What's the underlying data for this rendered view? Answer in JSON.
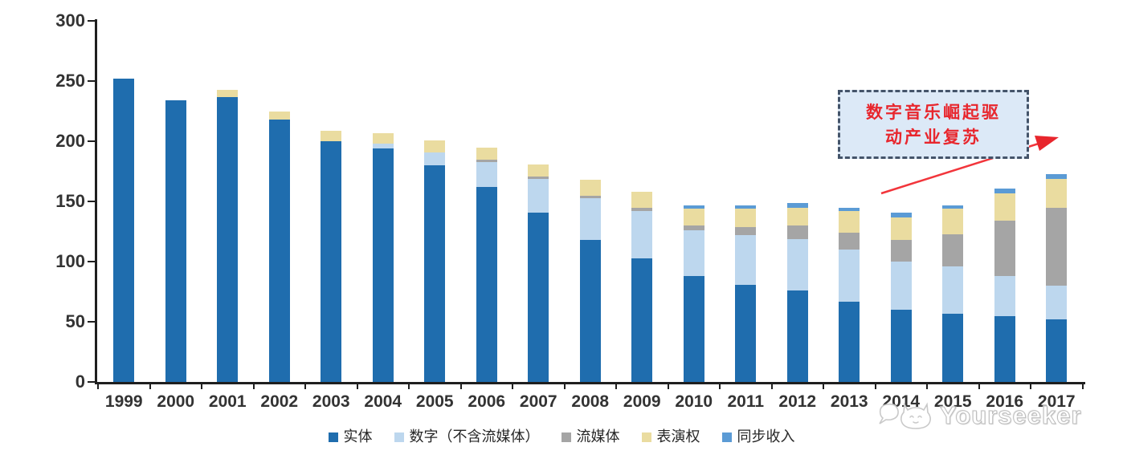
{
  "chart_data": {
    "type": "bar",
    "stacked": true,
    "title": "",
    "xlabel": "",
    "ylabel": "",
    "ylim": [
      0,
      300
    ],
    "yticks": [
      0,
      50,
      100,
      150,
      200,
      250,
      300
    ],
    "grid": false,
    "legend_position": "bottom",
    "axis_color": "#1f1f1f",
    "categories": [
      "1999",
      "2000",
      "2001",
      "2002",
      "2003",
      "2004",
      "2005",
      "2006",
      "2007",
      "2008",
      "2009",
      "2010",
      "2011",
      "2012",
      "2013",
      "2014",
      "2015",
      "2016",
      "2017"
    ],
    "series": [
      {
        "name": "实体",
        "color": "#1f6dae",
        "values": [
          252,
          234,
          237,
          218,
          200,
          194,
          180,
          162,
          141,
          118,
          103,
          88,
          81,
          76,
          67,
          60,
          57,
          55,
          52
        ]
      },
      {
        "name": "数字（不含流媒体）",
        "color": "#bdd7ee",
        "values": [
          0,
          0,
          0,
          0,
          0,
          4,
          11,
          21,
          28,
          35,
          39,
          38,
          41,
          43,
          43,
          40,
          39,
          33,
          28
        ]
      },
      {
        "name": "流媒体",
        "color": "#a5a5a5",
        "values": [
          0,
          0,
          0,
          0,
          0,
          0,
          0,
          2,
          2,
          2,
          3,
          4,
          7,
          11,
          14,
          18,
          27,
          46,
          65
        ]
      },
      {
        "name": "表演权",
        "color": "#eadca0",
        "values": [
          0,
          0,
          6,
          7,
          9,
          9,
          10,
          10,
          10,
          13,
          13,
          14,
          15,
          15,
          18,
          19,
          21,
          23,
          24
        ]
      },
      {
        "name": "同步收入",
        "color": "#5b9bd5",
        "values": [
          0,
          0,
          0,
          0,
          0,
          0,
          0,
          0,
          0,
          0,
          0,
          3,
          3,
          4,
          3,
          4,
          3,
          4,
          4
        ]
      }
    ]
  },
  "annotation": {
    "line1": "数字音乐崛起驱",
    "line2": "动产业复苏",
    "text_color": "#e8262d",
    "box_fill": "#dce9f7",
    "border_color": "#44546a",
    "arrow_color": "#f2353b"
  },
  "watermark": {
    "text": "Yourseeker",
    "logo": "cat-face-logo"
  }
}
